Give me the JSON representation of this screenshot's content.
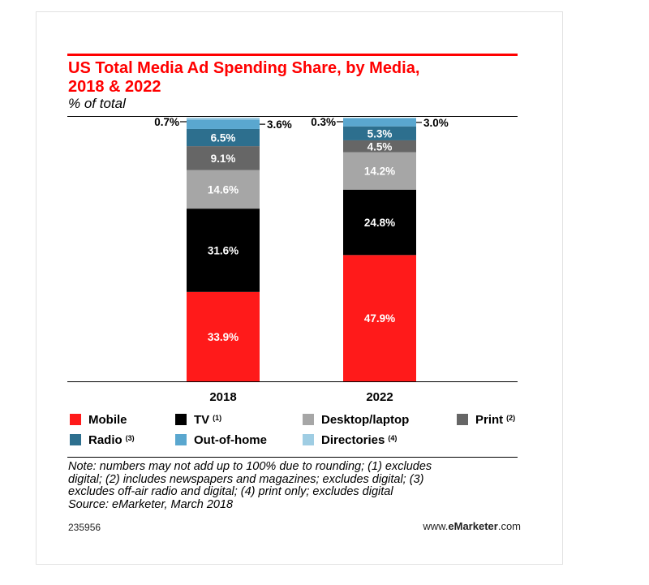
{
  "header": {
    "title_line1": "US Total Media Ad Spending Share, by Media,",
    "title_line2": "2018 & 2022",
    "subtitle": "% of total"
  },
  "chart_data": {
    "type": "bar",
    "stacked": true,
    "title": "US Total Media Ad Spending Share, by Media, 2018 & 2022",
    "subtitle": "% of total",
    "categories": [
      "2018",
      "2022"
    ],
    "series": [
      {
        "name": "Mobile",
        "color": "#ff1a1a",
        "label_color": "#ffffff",
        "values": [
          33.9,
          47.9
        ],
        "labels": [
          "33.9%",
          "47.9%"
        ]
      },
      {
        "name": "TV",
        "color": "#000000",
        "label_color": "#ffffff",
        "values": [
          31.6,
          24.8
        ],
        "labels": [
          "31.6%",
          "24.8%"
        ]
      },
      {
        "name": "Desktop/laptop",
        "color": "#a6a6a6",
        "label_color": "#ffffff",
        "values": [
          14.6,
          14.2
        ],
        "labels": [
          "14.6%",
          "14.2%"
        ]
      },
      {
        "name": "Print",
        "color": "#666666",
        "label_color": "#ffffff",
        "values": [
          9.1,
          4.5
        ],
        "labels": [
          "9.1%",
          "4.5%"
        ]
      },
      {
        "name": "Radio",
        "color": "#2d6f8e",
        "label_color": "#ffffff",
        "values": [
          6.5,
          5.3
        ],
        "labels": [
          "6.5%",
          "5.3%"
        ]
      },
      {
        "name": "Out-of-home",
        "color": "#5aa7cf",
        "label_color": "#000000",
        "values": [
          3.6,
          3.0
        ],
        "labels": [
          "3.6%",
          "3.0%"
        ]
      },
      {
        "name": "Directories",
        "color": "#9fcde3",
        "label_color": "#000000",
        "values": [
          0.7,
          0.3
        ],
        "labels": [
          "0.7%",
          "0.3%"
        ]
      }
    ],
    "ylim": [
      0,
      100
    ],
    "grid": false,
    "legend_position": "bottom"
  },
  "legend": [
    {
      "label": "Mobile",
      "note": "",
      "color": "#ff1a1a"
    },
    {
      "label": "TV",
      "note": "(1)",
      "color": "#000000"
    },
    {
      "label": "Desktop/laptop",
      "note": "",
      "color": "#a6a6a6"
    },
    {
      "label": "Print",
      "note": "(2)",
      "color": "#666666"
    },
    {
      "label": "Radio",
      "note": "(3)",
      "color": "#2d6f8e"
    },
    {
      "label": "Out-of-home",
      "note": "",
      "color": "#5aa7cf"
    },
    {
      "label": "Directories",
      "note": "(4)",
      "color": "#9fcde3"
    }
  ],
  "note": {
    "lines": [
      "Note: numbers may not add up to 100% due to rounding; (1) excludes",
      "digital; (2) includes newspapers and magazines; excludes digital; (3)",
      "excludes off-air radio and digital; (4) print only; excludes digital",
      "Source: eMarketer, March 2018"
    ]
  },
  "footer": {
    "chart_id": "235956",
    "site_prefix": "www.",
    "site_brand": "eMarketer",
    "site_suffix": ".com"
  }
}
